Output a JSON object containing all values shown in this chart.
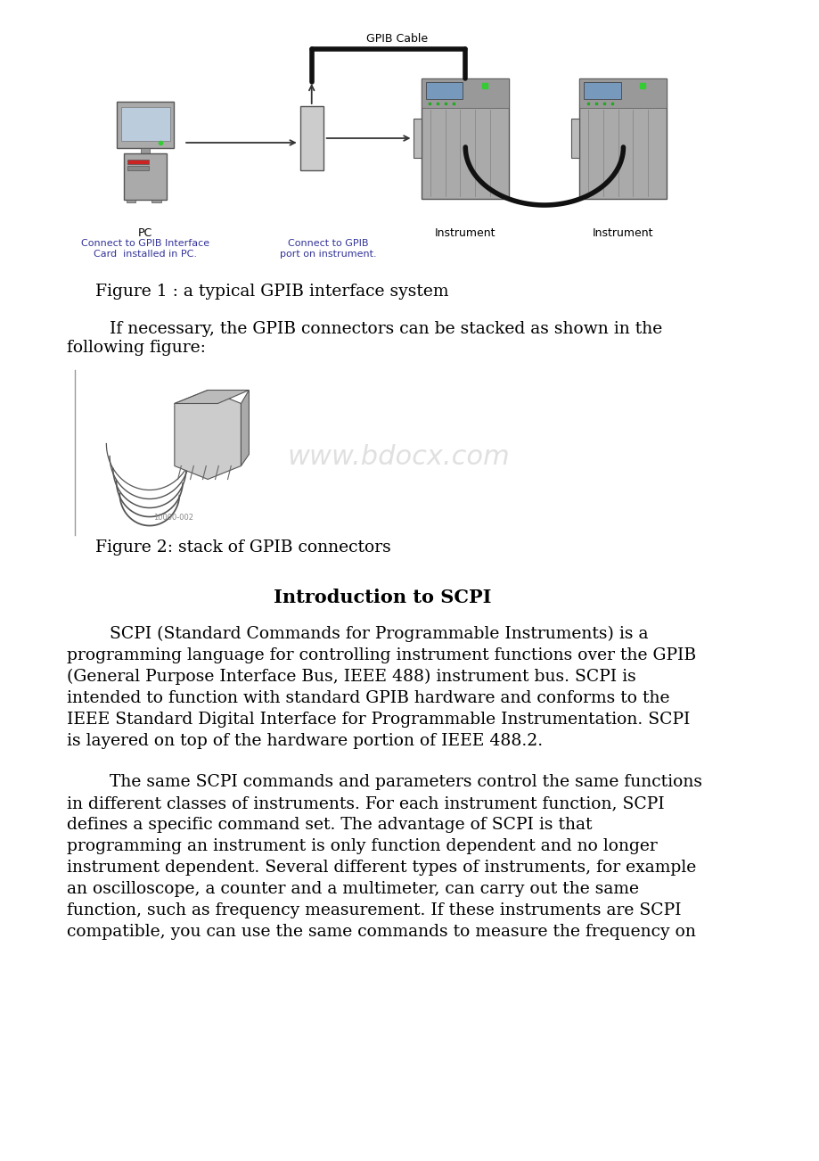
{
  "bg_color": "#ffffff",
  "fig_width": 9.2,
  "fig_height": 13.02,
  "fig1_caption": "Figure 1 : a typical GPIB interface system",
  "fig2_caption": "Figure 2: stack of GPIB connectors",
  "section_title": "Introduction to SCPI",
  "between_para": "        If necessary, the GPIB connectors can be stacked as shown in the\nfollowing figure:",
  "para1_lines": [
    "        SCPI (Standard Commands for Programmable Instruments) is a",
    "programming language for controlling instrument functions over the GPIB",
    "(General Purpose Interface Bus, IEEE 488) instrument bus. SCPI is",
    "intended to function with standard GPIB hardware and conforms to the",
    "IEEE Standard Digital Interface for Programmable Instrumentation. SCPI",
    "is layered on top of the hardware portion of IEEE 488.2."
  ],
  "para2_lines": [
    "        The same SCPI commands and parameters control the same functions",
    "in different classes of instruments. For each instrument function, SCPI",
    "defines a specific command set. The advantage of SCPI is that",
    "programming an instrument is only function dependent and no longer",
    "instrument dependent. Several different types of instruments, for example",
    "an oscilloscope, a counter and a multimeter, can carry out the same",
    "function, such as frequency measurement. If these instruments are SCPI",
    "compatible, you can use the same commands to measure the frequency on"
  ],
  "text_color": "#000000",
  "caption_color": "#000000",
  "section_title_color": "#000000",
  "watermark_text": "www.bdocx.com",
  "watermark_color": "#cccccc",
  "body_font_size": 13.5,
  "caption_font_size": 13.5,
  "section_title_font_size": 15,
  "gpib_cable_label": "GPIB Cable",
  "pc_label": "PC",
  "instrument_label": "Instrument",
  "connect_pc_label": "Connect to GPIB Interface\nCard  installed in PC.",
  "connect_gpib_label": "Connect to GPIB\nport on instrument."
}
